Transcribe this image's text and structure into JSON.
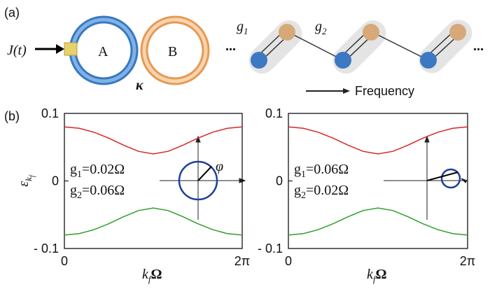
{
  "panels": [
    "(a)",
    "(b)"
  ],
  "diagram": {
    "drive": "J(t)",
    "ring_a": "A",
    "ring_b": "B",
    "coupling": "κ",
    "hop1": {
      "main": "g",
      "sub": "1"
    },
    "hop2": {
      "main": "g",
      "sub": "2"
    },
    "ellipsis": "...",
    "axis": "Frequency",
    "angle": "φ"
  },
  "chart_data": [
    {
      "type": "line",
      "x": [
        0,
        0.5236,
        1.0472,
        1.5708,
        2.0944,
        2.618,
        3.1416,
        3.6652,
        4.1888,
        4.7124,
        5.236,
        5.7596,
        6.2832
      ],
      "series": [
        {
          "color": "#d62728",
          "values": [
            0.08,
            0.07796,
            0.07211,
            0.06325,
            0.05292,
            0.04384,
            0.04,
            0.04384,
            0.05292,
            0.06325,
            0.07211,
            0.07796,
            0.08
          ]
        },
        {
          "color": "#2ca02c",
          "values": [
            -0.08,
            -0.07796,
            -0.07211,
            -0.06325,
            -0.05292,
            -0.04384,
            -0.04,
            -0.04384,
            -0.05292,
            -0.06325,
            -0.07211,
            -0.07796,
            -0.08
          ]
        }
      ],
      "xlim": [
        0,
        6.2832
      ],
      "xticks": [
        0,
        {
          "value": 6.2832,
          "label": "2π"
        }
      ],
      "ylim": [
        -0.1,
        0.1
      ],
      "yticks": [
        {
          "value": 0.1,
          "label": "0.1"
        },
        0,
        {
          "value": -0.1,
          "label": "- 0.1"
        }
      ],
      "x_label": {
        "main": "k",
        "sub": "f",
        "tail": "Ω"
      },
      "y_label": {
        "main": "ε",
        "sub": "k",
        "subsub": "f"
      },
      "annotations": [
        {
          "main": "g",
          "sub": "1",
          "tail": "=0.02Ω"
        },
        {
          "main": "g",
          "sub": "2",
          "tail": "=0.06Ω"
        }
      ]
    },
    {
      "type": "line",
      "x": [
        0,
        0.5236,
        1.0472,
        1.5708,
        2.0944,
        2.618,
        3.1416,
        3.6652,
        4.1888,
        4.7124,
        5.236,
        5.7596,
        6.2832
      ],
      "series": [
        {
          "color": "#d62728",
          "values": [
            0.08,
            0.07796,
            0.07211,
            0.06325,
            0.05292,
            0.04384,
            0.04,
            0.04384,
            0.05292,
            0.06325,
            0.07211,
            0.07796,
            0.08
          ]
        },
        {
          "color": "#2ca02c",
          "values": [
            -0.08,
            -0.07796,
            -0.07211,
            -0.06325,
            -0.05292,
            -0.04384,
            -0.04,
            -0.04384,
            -0.05292,
            -0.06325,
            -0.07211,
            -0.07796,
            -0.08
          ]
        }
      ],
      "xlim": [
        0,
        6.2832
      ],
      "xticks": [
        0,
        {
          "value": 6.2832,
          "label": "2π"
        }
      ],
      "ylim": [
        -0.1,
        0.1
      ],
      "yticks": [
        {
          "value": 0.1,
          "label": "0.1"
        },
        0,
        {
          "value": -0.1,
          "label": "- 0.1"
        }
      ],
      "x_label": {
        "main": "k",
        "sub": "f",
        "tail": "Ω"
      },
      "annotations": [
        {
          "main": "g",
          "sub": "1",
          "tail": "=0.06Ω"
        },
        {
          "main": "g",
          "sub": "2",
          "tail": "=0.02Ω"
        }
      ]
    }
  ]
}
